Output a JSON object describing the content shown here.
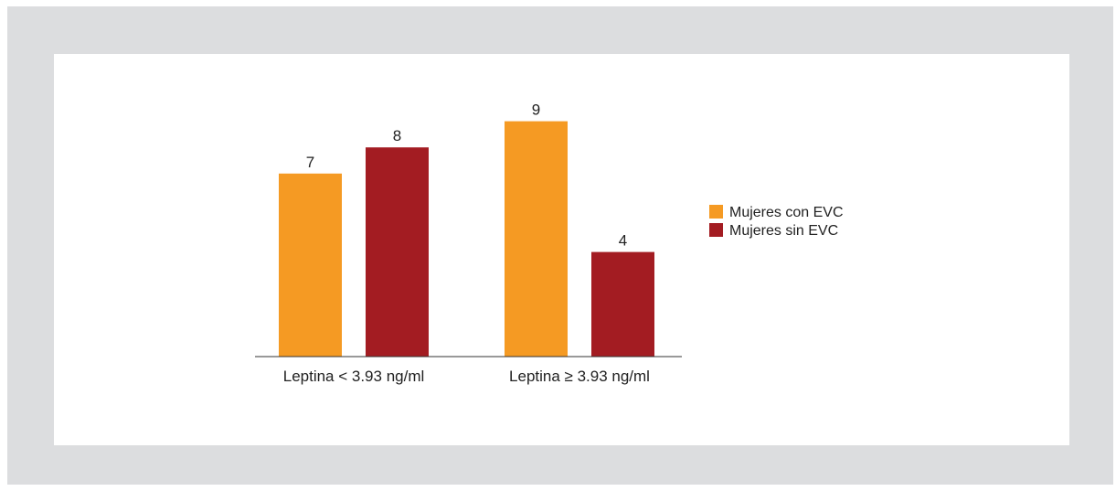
{
  "chart_data": {
    "type": "bar",
    "categories": [
      "Leptina < 3.93 ng/ml",
      "Leptina ≥ 3.93 ng/ml"
    ],
    "series": [
      {
        "name": "Mujeres con EVC",
        "color": "#f59a23",
        "values": [
          7,
          9
        ]
      },
      {
        "name": "Mujeres sin EVC",
        "color": "#a31c22",
        "values": [
          8,
          4
        ]
      }
    ],
    "ylim": [
      0,
      10
    ],
    "grid": false,
    "legend_position": "right",
    "data_labels": true
  }
}
